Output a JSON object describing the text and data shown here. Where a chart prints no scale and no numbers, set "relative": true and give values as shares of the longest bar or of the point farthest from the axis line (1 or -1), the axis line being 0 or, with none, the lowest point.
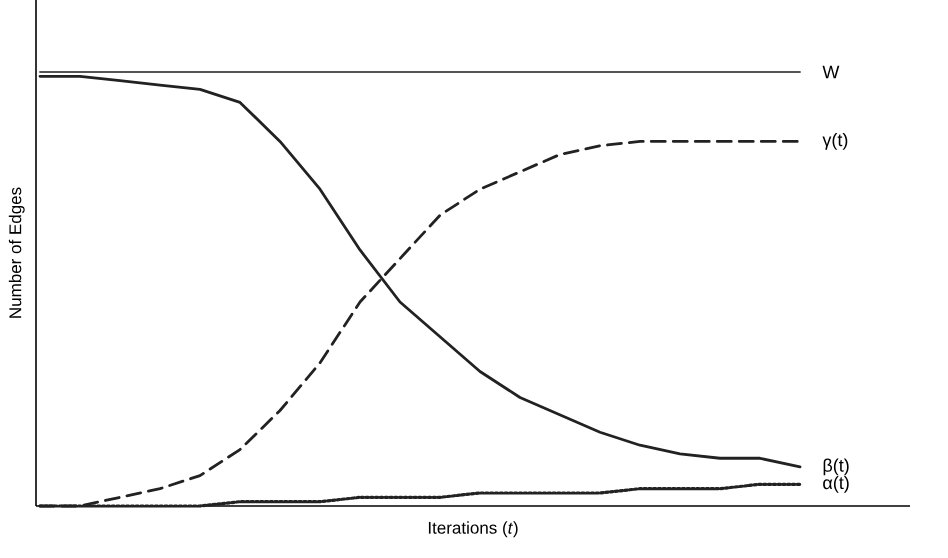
{
  "chart_data": {
    "type": "line",
    "relative": true,
    "xlabel": "Iterations (*t*)",
    "ylabel": "Number of Edges",
    "marker": "none",
    "categories": [
      null,
      null,
      null,
      null,
      null,
      null,
      null,
      null,
      null,
      null,
      null,
      null,
      null,
      null,
      null,
      null,
      null,
      null,
      null,
      null
    ],
    "series": [
      {
        "name": "W",
        "color": "#555555",
        "line_style": "solid",
        "values": [
          1,
          1,
          1,
          1,
          1,
          1,
          1,
          1,
          1,
          1,
          1,
          1,
          1,
          1,
          1,
          1,
          1,
          1,
          1,
          1
        ]
      },
      {
        "name": "γ(t)",
        "color": "#222222",
        "line_style": "dashed",
        "values": [
          0,
          0,
          0.02,
          0.04,
          0.07,
          0.13,
          0.22,
          0.33,
          0.47,
          0.57,
          0.67,
          0.73,
          0.77,
          0.81,
          0.83,
          0.84,
          0.84,
          0.84,
          0.84,
          0.84
        ]
      },
      {
        "name": "β(t)",
        "color": "#222222",
        "line_style": "solid",
        "values": [
          0.99,
          0.99,
          0.98,
          0.97,
          0.96,
          0.93,
          0.84,
          0.73,
          0.59,
          0.47,
          0.39,
          0.31,
          0.25,
          0.21,
          0.17,
          0.14,
          0.12,
          0.11,
          0.11,
          0.09
        ]
      },
      {
        "name": "α(t)",
        "color": "#222222",
        "line_style": "dotted",
        "values": [
          0,
          0,
          0,
          0,
          0,
          0.01,
          0.01,
          0.01,
          0.02,
          0.02,
          0.02,
          0.03,
          0.03,
          0.03,
          0.03,
          0.04,
          0.04,
          0.04,
          0.05,
          0.05
        ]
      }
    ]
  }
}
